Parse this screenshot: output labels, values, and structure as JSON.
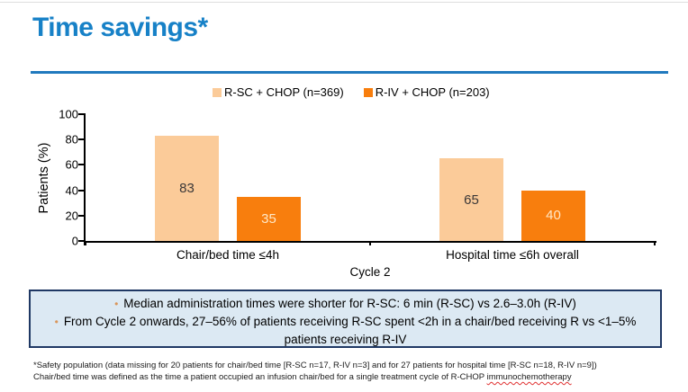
{
  "slide": {
    "title": "Time savings*",
    "accent_color": "#1781C7"
  },
  "chart_data": {
    "type": "bar",
    "title": "",
    "ylabel": "Patients (%)",
    "xlabel": "Cycle 2",
    "ylim": [
      0,
      100
    ],
    "yticks": [
      0,
      20,
      40,
      60,
      80,
      100
    ],
    "grid": false,
    "legend_position": "top",
    "categories": [
      "Chair/bed time ≤4h",
      "Hospital time ≤6h overall"
    ],
    "series": [
      {
        "name": "R-SC + CHOP (n=369)",
        "color": "#FBCB99",
        "value_label_color": "#3B3838",
        "values": [
          83,
          65
        ]
      },
      {
        "name": "R-IV + CHOP (n=203)",
        "color": "#F87E0D",
        "value_label_color": "#FFE8C7",
        "values": [
          35,
          40
        ]
      }
    ]
  },
  "callout_box": {
    "background": "#DCE9F3",
    "border_color": "#1F3864",
    "bullet_color": "#D9965B",
    "bullets": [
      "Median administration times were shorter for R-SC: 6 min (R-SC) vs 2.6–3.0h (R-IV)",
      "From Cycle 2 onwards, 27–56% of patients receiving R-SC spent <2h in a chair/bed receiving R vs <1–5% patients receiving R-IV"
    ]
  },
  "footnote": {
    "line1": "*Safety population (data missing for 20 patients for chair/bed time [R-SC n=17, R-IV n=3] and for 27 patients for hospital time [R-SC n=18, R-IV n=9])",
    "line2_prefix": "Chair/bed time was defined as the time a patient occupied an infusion chair/bed for a single treatment cycle of R-CHOP ",
    "line2_flagged_word": "immunochemotherapy"
  }
}
